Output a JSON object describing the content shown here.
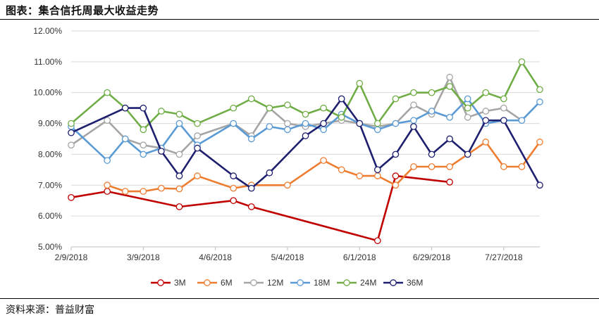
{
  "header": {
    "title": "图表：集合信托周最大收益走势"
  },
  "footer": {
    "source": "资料来源：普益财富"
  },
  "chart_data": {
    "type": "line",
    "title": "",
    "xlabel": "",
    "ylabel": "",
    "ylim": [
      5.0,
      12.0
    ],
    "y_ticks": [
      "5.00%",
      "6.00%",
      "7.00%",
      "8.00%",
      "9.00%",
      "10.00%",
      "11.00%",
      "12.00%"
    ],
    "y_tick_values": [
      5,
      6,
      7,
      8,
      9,
      10,
      11,
      12
    ],
    "grid": "horizontal",
    "legend": "bottom",
    "x_ticks": [
      "2/9/2018",
      "3/9/2018",
      "4/6/2018",
      "5/4/2018",
      "6/1/2018",
      "6/29/2018",
      "7/27/2018"
    ],
    "x": [
      "2/9/2018",
      "2/16/2018",
      "2/23/2018",
      "3/2/2018",
      "3/9/2018",
      "3/16/2018",
      "3/23/2018",
      "3/30/2018",
      "4/6/2018",
      "4/13/2018",
      "4/20/2018",
      "4/27/2018",
      "5/4/2018",
      "5/11/2018",
      "5/18/2018",
      "5/25/2018",
      "6/1/2018",
      "6/8/2018",
      "6/15/2018",
      "6/22/2018",
      "6/29/2018",
      "7/6/2018",
      "7/13/2018",
      "7/20/2018",
      "7/27/2018",
      "8/3/2018",
      "8/10/2018"
    ],
    "series": [
      {
        "name": "3M",
        "color": "#c00000",
        "values": [
          6.6,
          null,
          6.8,
          null,
          null,
          null,
          6.3,
          null,
          null,
          6.5,
          6.3,
          null,
          null,
          null,
          null,
          null,
          null,
          5.2,
          7.3,
          null,
          null,
          7.1,
          null,
          null,
          null,
          null,
          null
        ]
      },
      {
        "name": "6M",
        "color": "#ed7d31",
        "values": [
          null,
          null,
          7.0,
          6.8,
          6.8,
          6.9,
          6.88,
          7.3,
          null,
          6.9,
          7.0,
          null,
          7.0,
          null,
          7.8,
          7.5,
          7.3,
          7.3,
          7.0,
          7.6,
          7.6,
          7.6,
          8.0,
          8.4,
          7.6,
          7.6,
          8.4
        ]
      },
      {
        "name": "12M",
        "color": "#a5a5a5",
        "values": [
          8.3,
          null,
          9.1,
          8.5,
          8.3,
          8.2,
          8.0,
          8.6,
          null,
          9.0,
          8.6,
          9.5,
          9.0,
          8.9,
          null,
          9.1,
          9.0,
          8.9,
          9.0,
          9.6,
          9.3,
          10.5,
          9.2,
          9.4,
          9.5,
          9.1,
          null
        ]
      },
      {
        "name": "18M",
        "color": "#5b9bd5",
        "values": [
          8.9,
          null,
          7.8,
          8.5,
          8.0,
          8.2,
          9.0,
          8.3,
          null,
          9.0,
          8.5,
          8.9,
          8.8,
          9.0,
          8.8,
          9.3,
          9.0,
          8.8,
          9.0,
          9.1,
          9.4,
          9.2,
          9.8,
          9.0,
          9.1,
          9.1,
          9.7
        ]
      },
      {
        "name": "24M",
        "color": "#70ad47",
        "values": [
          9.0,
          null,
          10.0,
          9.5,
          8.8,
          9.4,
          9.3,
          9.0,
          null,
          9.5,
          9.8,
          9.5,
          9.6,
          9.3,
          9.5,
          9.2,
          10.3,
          9.0,
          9.8,
          10.0,
          10.0,
          10.2,
          9.5,
          10.0,
          9.8,
          11.0,
          10.1
        ]
      },
      {
        "name": "36M",
        "color": "#1f1f70",
        "values": [
          8.7,
          null,
          null,
          9.5,
          9.5,
          8.1,
          7.3,
          8.2,
          null,
          7.3,
          6.9,
          7.4,
          null,
          8.6,
          9.0,
          9.8,
          9.0,
          7.5,
          8.0,
          8.9,
          8.0,
          8.5,
          8.0,
          9.1,
          9.1,
          null,
          7.0
        ]
      }
    ]
  }
}
